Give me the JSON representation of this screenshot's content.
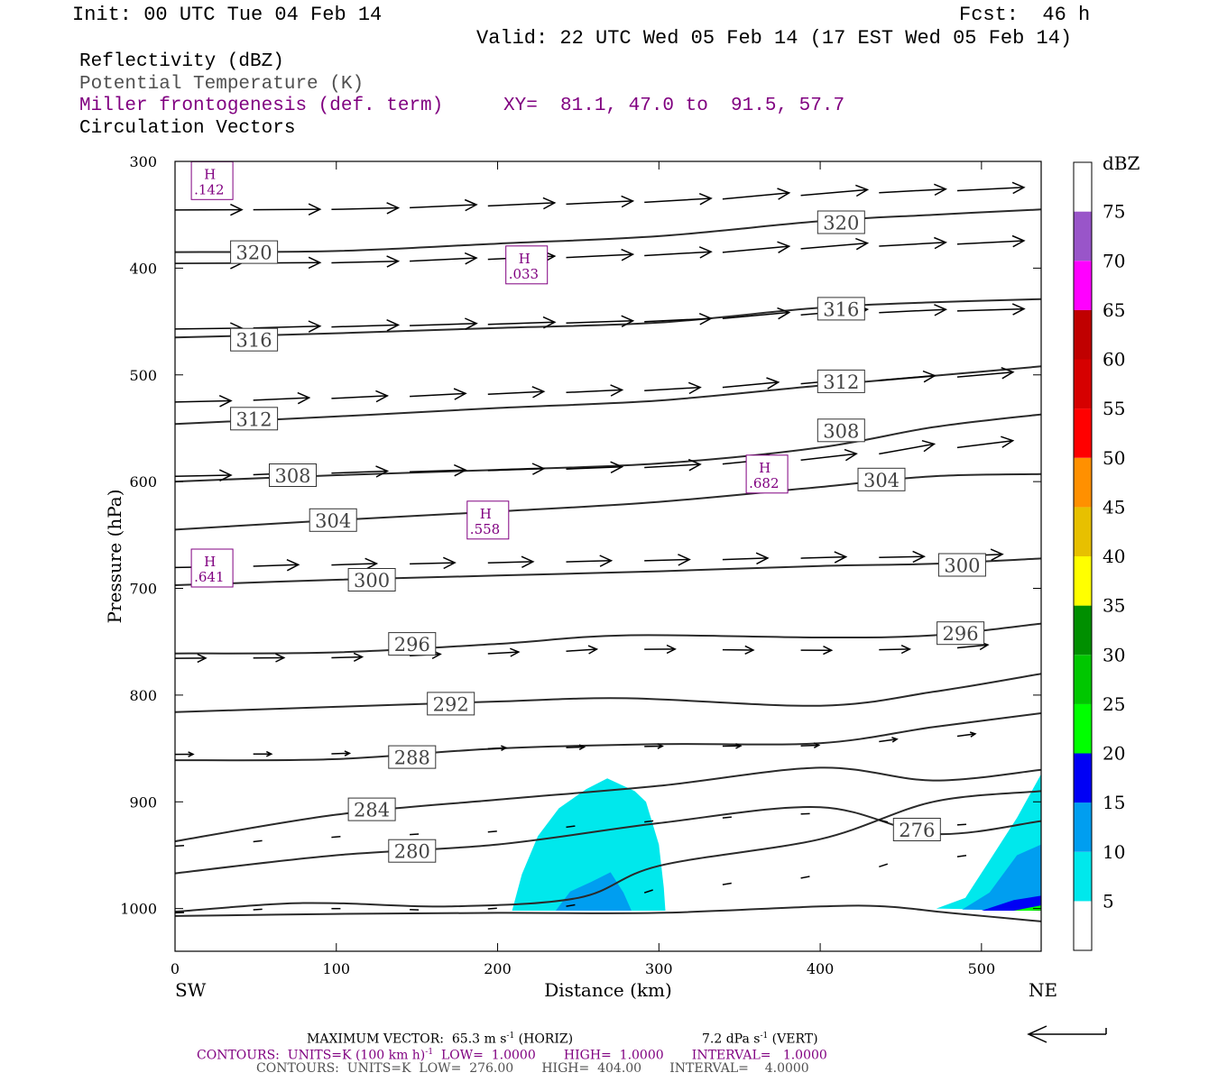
{
  "header": {
    "init": "Init: 00 UTC Tue 04 Feb 14",
    "fcst": "Fcst:  46 h",
    "valid": "Valid: 22 UTC Wed 05 Feb 14 (17 EST Wed 05 Feb 14)"
  },
  "legend": {
    "reflectivity": "Reflectivity (dBZ)",
    "theta": "Potential Temperature (K)",
    "frontogenesis": "Miller frontogenesis (def. term)",
    "xy": "XY=  81.1, 47.0 to  91.5, 57.7",
    "vectors": "Circulation Vectors"
  },
  "footer": {
    "maxvec_prefix": "MAXIMUM VECTOR:  65.3 m s",
    "maxvec_horiz": " (HORIZ)",
    "maxvec_vert_prefix": "7.2 dPa s",
    "maxvec_vert": " (VERT)",
    "exp_neg1": "-1",
    "contours_front_a": "CONTOURS:  UNITS=K (100 km h)",
    "contours_front_b": "  LOW=  1.0000       HIGH=  1.0000       INTERVAL=   1.0000",
    "contours_theta": "CONTOURS:  UNITS=K  LOW=  276.00       HIGH=  404.00       INTERVAL=    4.0000"
  },
  "chart_data": {
    "type": "cross-section",
    "xlabel": "Distance (km)",
    "ylabel": "Pressure (hPa)",
    "xlim": [
      0,
      537
    ],
    "ylim": [
      1040,
      300
    ],
    "x_ticks": [
      0,
      100,
      200,
      300,
      400,
      500
    ],
    "y_ticks": [
      300,
      400,
      500,
      600,
      700,
      800,
      900,
      1000
    ],
    "x_end_labels": {
      "left": "SW",
      "right": "NE"
    },
    "colorbar": {
      "title": "dBZ",
      "levels": [
        "5",
        "10",
        "15",
        "20",
        "25",
        "30",
        "35",
        "40",
        "45",
        "50",
        "55",
        "60",
        "65",
        "70",
        "75"
      ],
      "colors": [
        "#ffffff",
        "#00e8ec",
        "#009ef0",
        "#0000f5",
        "#00ff00",
        "#00c700",
        "#008f00",
        "#ffff00",
        "#e7c000",
        "#ff9000",
        "#ff0000",
        "#d60000",
        "#c00000",
        "#ff00ff",
        "#9955c9",
        "#ffffff"
      ]
    },
    "theta_contours": [
      {
        "label": "320",
        "points": [
          [
            0,
            385
          ],
          [
            100,
            384
          ],
          [
            200,
            377
          ],
          [
            300,
            370
          ],
          [
            400,
            356
          ],
          [
            470,
            350
          ],
          [
            537,
            345
          ]
        ],
        "labels_at": [
          [
            49,
            385
          ],
          [
            413,
            357
          ]
        ]
      },
      {
        "label": "316",
        "points": [
          [
            0,
            465
          ],
          [
            100,
            461
          ],
          [
            200,
            456
          ],
          [
            300,
            451
          ],
          [
            400,
            437
          ],
          [
            470,
            432
          ],
          [
            537,
            429
          ]
        ],
        "labels_at": [
          [
            49,
            467
          ],
          [
            413,
            438
          ]
        ]
      },
      {
        "label": "312",
        "points": [
          [
            0,
            546
          ],
          [
            100,
            539
          ],
          [
            200,
            531
          ],
          [
            300,
            524
          ],
          [
            400,
            510
          ],
          [
            470,
            501
          ],
          [
            537,
            492
          ]
        ],
        "labels_at": [
          [
            49,
            541
          ],
          [
            413,
            506
          ]
        ]
      },
      {
        "label": "308",
        "points": [
          [
            0,
            600
          ],
          [
            100,
            594
          ],
          [
            200,
            589
          ],
          [
            300,
            583
          ],
          [
            400,
            568
          ],
          [
            470,
            549
          ],
          [
            537,
            537
          ]
        ],
        "labels_at": [
          [
            73,
            594
          ],
          [
            413,
            552
          ]
        ]
      },
      {
        "label": "304",
        "points": [
          [
            0,
            645
          ],
          [
            100,
            636
          ],
          [
            200,
            628
          ],
          [
            300,
            619
          ],
          [
            400,
            605
          ],
          [
            470,
            595
          ],
          [
            537,
            593
          ]
        ],
        "labels_at": [
          [
            98,
            636
          ],
          [
            438,
            598
          ]
        ]
      },
      {
        "label": "300",
        "points": [
          [
            0,
            697
          ],
          [
            100,
            692
          ],
          [
            200,
            688
          ],
          [
            300,
            684
          ],
          [
            400,
            679
          ],
          [
            470,
            677
          ],
          [
            537,
            672
          ]
        ],
        "labels_at": [
          [
            122,
            692
          ],
          [
            488,
            678
          ]
        ]
      },
      {
        "label": "296",
        "points": [
          [
            0,
            761
          ],
          [
            100,
            760
          ],
          [
            200,
            752
          ],
          [
            280,
            744
          ],
          [
            400,
            746
          ],
          [
            470,
            744
          ],
          [
            537,
            733
          ]
        ],
        "labels_at": [
          [
            147,
            752
          ],
          [
            487,
            742
          ]
        ]
      },
      {
        "label": "292",
        "points": [
          [
            0,
            816
          ],
          [
            100,
            811
          ],
          [
            200,
            806
          ],
          [
            280,
            803
          ],
          [
            400,
            810
          ],
          [
            470,
            797
          ],
          [
            537,
            780
          ]
        ],
        "labels_at": [
          [
            171,
            808
          ]
        ]
      },
      {
        "label": "288",
        "points": [
          [
            0,
            861
          ],
          [
            100,
            860
          ],
          [
            200,
            850
          ],
          [
            300,
            846
          ],
          [
            400,
            845
          ],
          [
            470,
            830
          ],
          [
            537,
            817
          ]
        ],
        "labels_at": [
          [
            147,
            858
          ]
        ]
      },
      {
        "label": "284",
        "points": [
          [
            0,
            937
          ],
          [
            100,
            912
          ],
          [
            200,
            898
          ],
          [
            300,
            885
          ],
          [
            400,
            868
          ],
          [
            470,
            880
          ],
          [
            537,
            870
          ]
        ],
        "labels_at": [
          [
            122,
            907
          ]
        ]
      },
      {
        "label": "280",
        "points": [
          [
            0,
            967
          ],
          [
            100,
            950
          ],
          [
            200,
            940
          ],
          [
            300,
            920
          ],
          [
            400,
            905
          ],
          [
            470,
            930
          ],
          [
            537,
            918
          ]
        ],
        "labels_at": [
          [
            147,
            946
          ]
        ],
        "extra_labels": [
          [
            "276",
            460,
            926
          ]
        ]
      },
      {
        "label": "",
        "points": [
          [
            0,
            1003
          ],
          [
            60,
            996
          ],
          [
            100,
            995
          ],
          [
            170,
            998
          ],
          [
            250,
            990
          ],
          [
            300,
            960
          ],
          [
            400,
            935
          ],
          [
            470,
            900
          ],
          [
            537,
            890
          ]
        ]
      },
      {
        "label": "",
        "points": [
          [
            0,
            1007
          ],
          [
            100,
            1005
          ],
          [
            200,
            1004
          ],
          [
            300,
            1004
          ],
          [
            400,
            998
          ],
          [
            440,
            998
          ],
          [
            480,
            1004
          ],
          [
            537,
            1012
          ]
        ]
      }
    ],
    "frontogenesis_maxima": [
      {
        "label": "H",
        "value": ".142",
        "x": 23,
        "p": 318
      },
      {
        "label": "H",
        "value": ".033",
        "x": 218,
        "p": 397
      },
      {
        "label": "H",
        "value": ".682",
        "x": 367,
        "p": 593
      },
      {
        "label": "H",
        "value": ".558",
        "x": 194,
        "p": 636
      },
      {
        "label": "H",
        "value": ".641",
        "x": 23,
        "p": 681
      }
    ],
    "reflectivity_areas": [
      {
        "level": "5",
        "color": "#00e8ec",
        "points": [
          [
            209,
            1002
          ],
          [
            215,
            968
          ],
          [
            225,
            932
          ],
          [
            238,
            906
          ],
          [
            255,
            888
          ],
          [
            268,
            878
          ],
          [
            285,
            890
          ],
          [
            292,
            900
          ],
          [
            300,
            940
          ],
          [
            303,
            980
          ],
          [
            304,
            1002
          ]
        ]
      },
      {
        "level": "10",
        "color": "#009ef0",
        "points": [
          [
            236,
            1002
          ],
          [
            245,
            984
          ],
          [
            258,
            975
          ],
          [
            270,
            966
          ],
          [
            278,
            985
          ],
          [
            283,
            1002
          ]
        ]
      },
      {
        "level": "5",
        "color": "#00e8ec",
        "points": [
          [
            472,
            1000
          ],
          [
            490,
            990
          ],
          [
            505,
            955
          ],
          [
            522,
            915
          ],
          [
            537,
            874
          ],
          [
            537,
            1002
          ]
        ]
      },
      {
        "level": "10",
        "color": "#009ef0",
        "points": [
          [
            488,
            1001
          ],
          [
            505,
            985
          ],
          [
            522,
            950
          ],
          [
            537,
            940
          ],
          [
            537,
            1002
          ]
        ]
      },
      {
        "level": "15",
        "color": "#0000f5",
        "points": [
          [
            500,
            1002
          ],
          [
            520,
            992
          ],
          [
            537,
            988
          ],
          [
            537,
            1002
          ]
        ]
      },
      {
        "level": "25",
        "color": "#00ff00",
        "points": [
          [
            520,
            1002
          ],
          [
            537,
            997
          ],
          [
            537,
            1002
          ]
        ]
      },
      {
        "level": "30",
        "color": "#00c700",
        "points": [
          [
            530,
            1002
          ],
          [
            537,
            1001
          ],
          [
            537,
            1002
          ]
        ]
      }
    ],
    "circulation_vectors": {
      "rows_p": [
        345,
        395,
        455,
        522,
        592,
        678,
        765,
        855,
        933,
        1000
      ],
      "x_start": 0,
      "x_spacing": 48.5
    },
    "reference_vector": "65.3 m s-1 horizontal"
  }
}
